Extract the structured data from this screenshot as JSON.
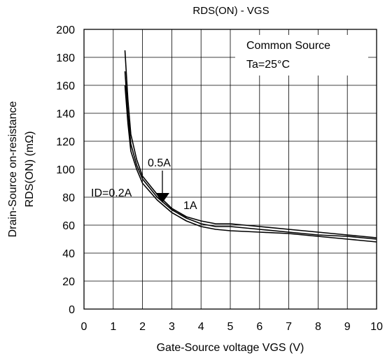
{
  "chart_data": {
    "type": "line",
    "title": "RDS(ON) - VGS",
    "xlabel": "Gate-Source voltage VGS (V)",
    "ylabel_lines": [
      "Drain-Source on-resistance",
      "RDS(ON) (mΩ)"
    ],
    "xlim": [
      0,
      10
    ],
    "ylim": [
      0,
      200
    ],
    "xticks": [
      0,
      1,
      2,
      3,
      4,
      5,
      6,
      7,
      8,
      9,
      10
    ],
    "yticks": [
      0,
      20,
      40,
      60,
      80,
      100,
      120,
      140,
      160,
      180,
      200
    ],
    "grid": true,
    "legend": "none",
    "annotations": {
      "conditions": [
        "Common Source",
        "Ta=25°C"
      ],
      "labels": [
        "ID=0.2A",
        "0.5A",
        "1A"
      ]
    },
    "series": [
      {
        "name": "ID=0.2A",
        "x": [
          1.4,
          1.5,
          1.6,
          1.8,
          2.0,
          2.5,
          3.0,
          3.5,
          4.0,
          4.5,
          5.0,
          6.0,
          7.0,
          8.0,
          9.0,
          10.0
        ],
        "y": [
          185,
          150,
          125,
          107,
          95,
          82,
          72,
          66,
          63,
          61,
          61,
          59,
          57,
          55,
          53,
          51
        ]
      },
      {
        "name": "0.5A",
        "x": [
          1.4,
          1.5,
          1.6,
          1.8,
          2.0,
          2.5,
          3.0,
          3.5,
          4.0,
          4.5,
          5.0,
          6.0,
          7.0,
          8.0,
          9.0,
          10.0
        ],
        "y": [
          170,
          140,
          118,
          103,
          93,
          80,
          71,
          65,
          61,
          59,
          59,
          57,
          55,
          53,
          52,
          50
        ]
      },
      {
        "name": "1A",
        "x": [
          1.4,
          1.5,
          1.6,
          1.8,
          2.0,
          2.5,
          3.0,
          3.5,
          4.0,
          4.5,
          5.0,
          6.0,
          7.0,
          8.0,
          9.0,
          10.0
        ],
        "y": [
          160,
          133,
          113,
          100,
          90,
          78,
          69,
          63,
          59,
          57,
          56,
          55,
          54,
          52,
          50,
          48
        ]
      }
    ]
  }
}
